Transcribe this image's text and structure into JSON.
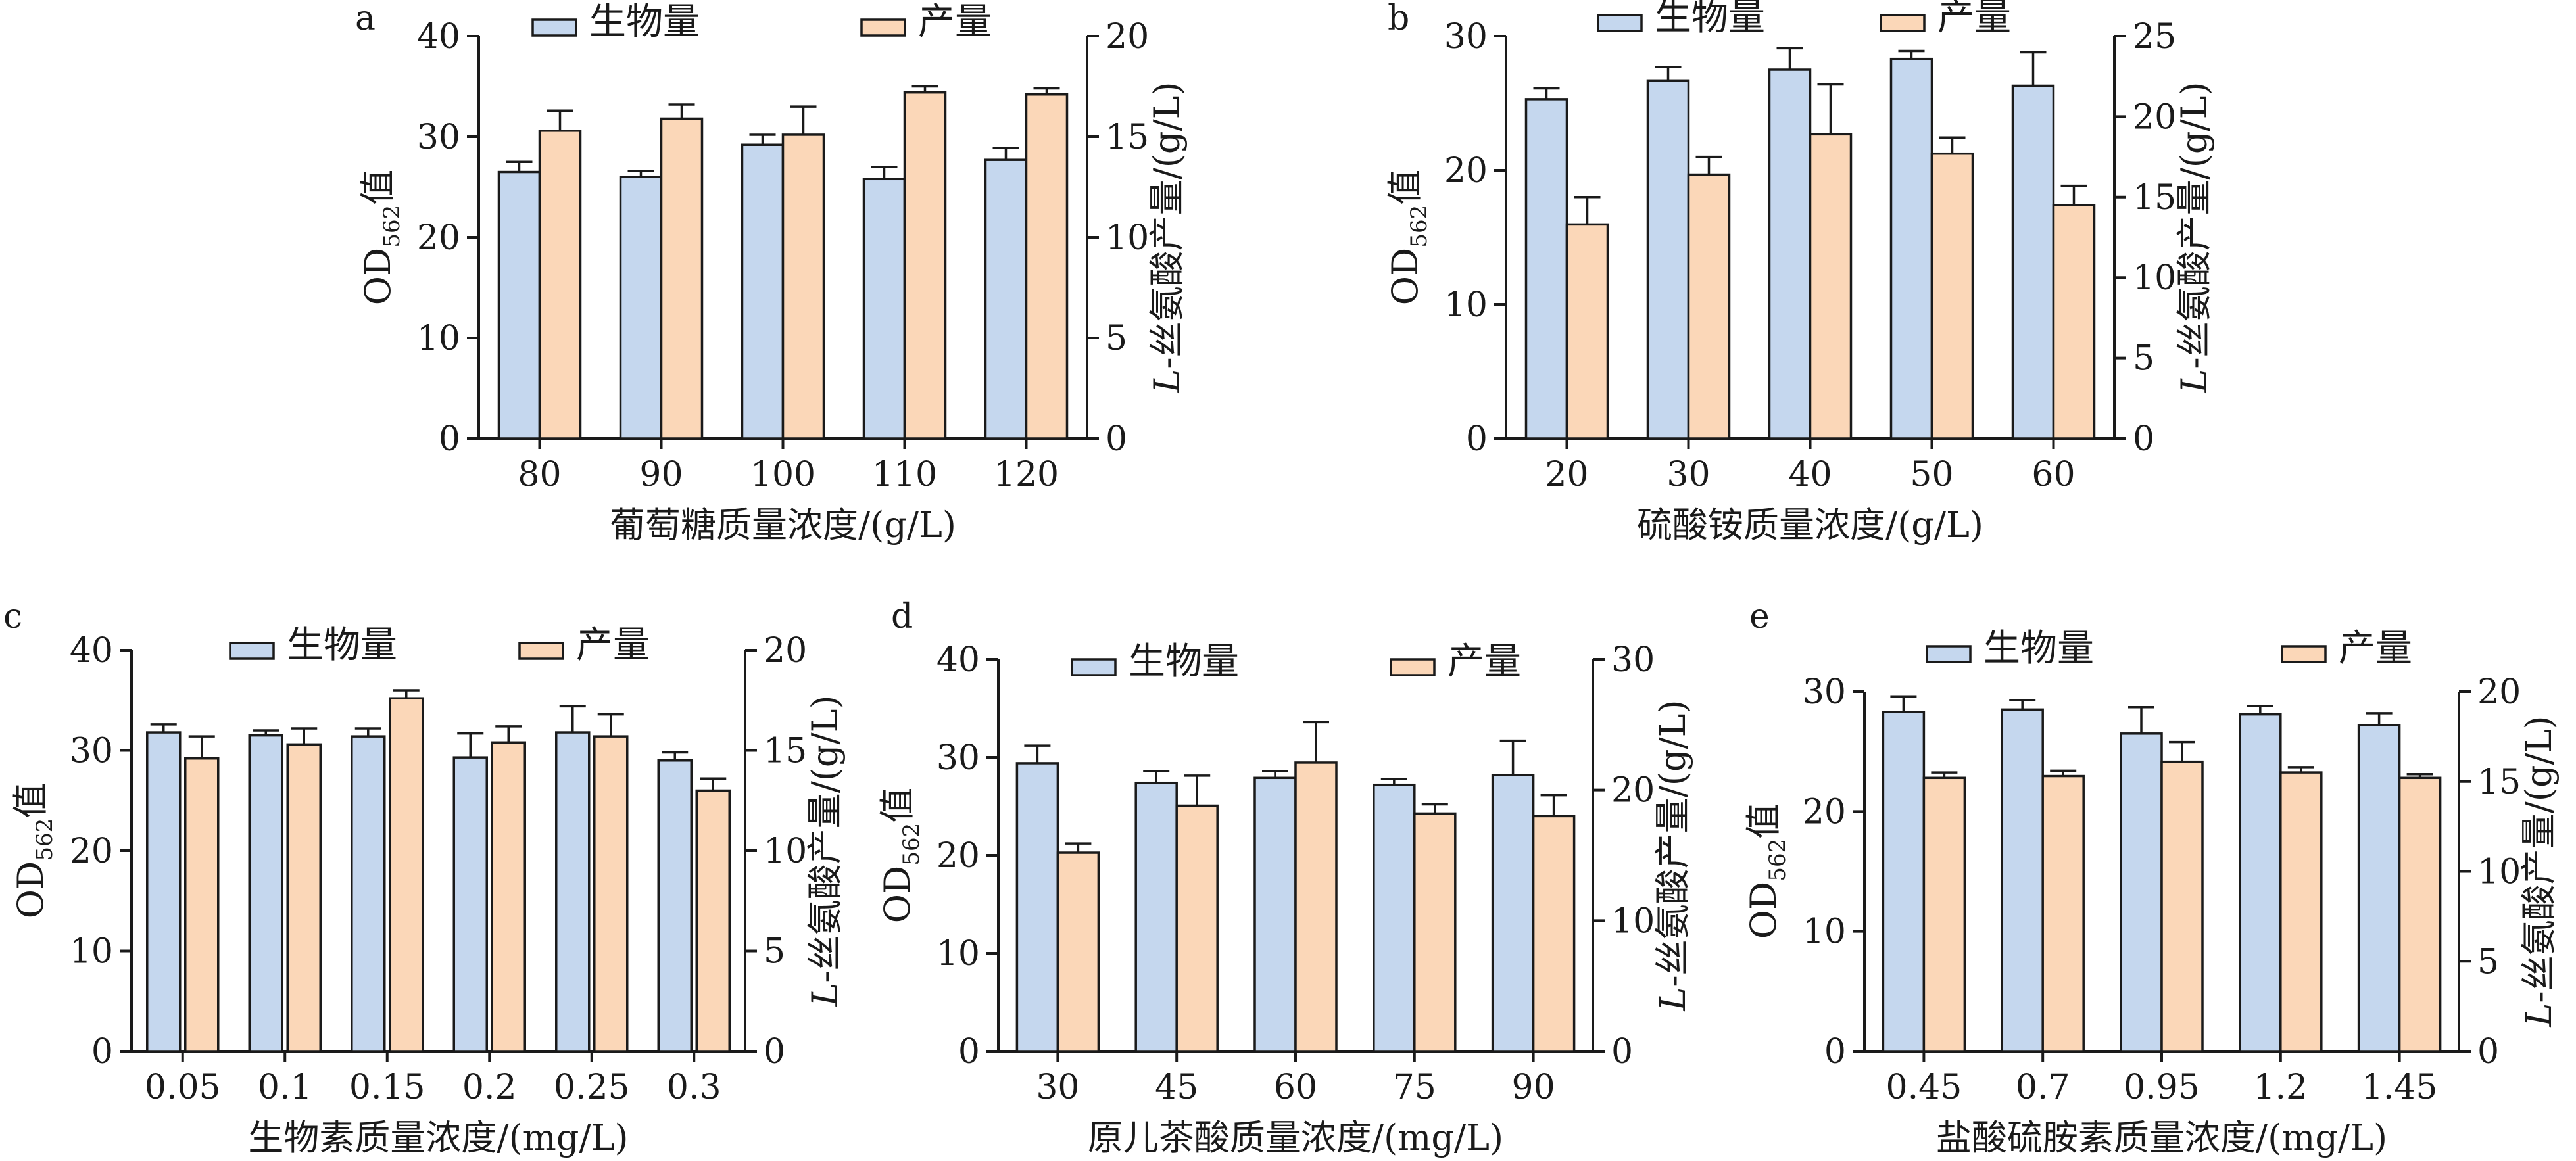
{
  "colors": {
    "biomass": "#c5d7ee",
    "yield": "#fbd7b8",
    "axis": "#1a1a1a"
  },
  "legend": {
    "biomass": "生物量",
    "yield": "产量"
  },
  "chart_data": [
    {
      "panel": "a",
      "type": "bar",
      "xlabel": "葡萄糖质量浓度/(g/L)",
      "ylabel_left": {
        "main": "OD",
        "sub": "562",
        "suffix": "值"
      },
      "ylabel_right": {
        "italic": "L",
        "rest": "-丝氨酸产量/(g/L)"
      },
      "categories": [
        "80",
        "90",
        "100",
        "110",
        "120"
      ],
      "left_ylim": [
        0,
        40
      ],
      "left_ticks": [
        "0",
        "10",
        "20",
        "30",
        "40"
      ],
      "right_ylim": [
        0,
        20
      ],
      "right_ticks": [
        "0",
        "5",
        "10",
        "15",
        "20"
      ],
      "series": [
        {
          "name": "生物量",
          "axis": "left",
          "values": [
            26.5,
            26.0,
            29.2,
            25.8,
            27.7
          ],
          "errors": [
            1.0,
            0.6,
            1.0,
            1.2,
            1.2
          ]
        },
        {
          "name": "产量",
          "axis": "right",
          "values": [
            15.3,
            15.9,
            15.1,
            17.2,
            17.1
          ],
          "errors": [
            1.0,
            0.7,
            1.4,
            0.3,
            0.3
          ]
        }
      ]
    },
    {
      "panel": "b",
      "type": "bar",
      "xlabel": "硫酸铵质量浓度/(g/L)",
      "ylabel_left": {
        "main": "OD",
        "sub": "562",
        "suffix": "值"
      },
      "ylabel_right": {
        "italic": "L",
        "rest": "-丝氨酸产量/(g/L)"
      },
      "categories": [
        "20",
        "30",
        "40",
        "50",
        "60"
      ],
      "left_ylim": [
        0,
        30
      ],
      "left_ticks": [
        "0",
        "10",
        "20",
        "30"
      ],
      "right_ylim": [
        0,
        25
      ],
      "right_ticks": [
        "0",
        "5",
        "10",
        "15",
        "20",
        "25"
      ],
      "series": [
        {
          "name": "生物量",
          "axis": "left",
          "values": [
            25.3,
            26.7,
            27.5,
            28.3,
            26.3
          ],
          "errors": [
            0.8,
            1.0,
            1.6,
            0.6,
            2.5
          ]
        },
        {
          "name": "产量",
          "axis": "right",
          "values": [
            13.3,
            16.4,
            18.9,
            17.7,
            14.5
          ],
          "errors": [
            1.7,
            1.1,
            3.1,
            1.0,
            1.2
          ]
        }
      ]
    },
    {
      "panel": "c",
      "type": "bar",
      "xlabel": "生物素质量浓度/(mg/L)",
      "ylabel_left": {
        "main": "OD",
        "sub": "562",
        "suffix": "值"
      },
      "ylabel_right": {
        "italic": "L",
        "rest": "-丝氨酸产量/(g/L)"
      },
      "categories": [
        "0.05",
        "0.1",
        "0.15",
        "0.2",
        "0.25",
        "0.3"
      ],
      "left_ylim": [
        0,
        40
      ],
      "left_ticks": [
        "0",
        "10",
        "20",
        "30",
        "40"
      ],
      "right_ylim": [
        0,
        20
      ],
      "right_ticks": [
        "0",
        "5",
        "10",
        "15",
        "20"
      ],
      "series": [
        {
          "name": "生物量",
          "axis": "left",
          "values": [
            31.8,
            31.5,
            31.4,
            29.3,
            31.8,
            29.0
          ],
          "errors": [
            0.8,
            0.5,
            0.8,
            2.4,
            2.6,
            0.8
          ]
        },
        {
          "name": "产量",
          "axis": "right",
          "values": [
            14.6,
            15.3,
            17.6,
            15.4,
            15.7,
            13.0
          ],
          "errors": [
            1.1,
            0.8,
            0.4,
            0.8,
            1.1,
            0.6
          ]
        }
      ]
    },
    {
      "panel": "d",
      "type": "bar",
      "xlabel": "原儿茶酸质量浓度/(mg/L)",
      "ylabel_left": {
        "main": "OD",
        "sub": "562",
        "suffix": "值"
      },
      "ylabel_right": {
        "italic": "L",
        "rest": "-丝氨酸产量/(g/L)"
      },
      "categories": [
        "30",
        "45",
        "60",
        "75",
        "90"
      ],
      "left_ylim": [
        0,
        40
      ],
      "left_ticks": [
        "0",
        "10",
        "20",
        "30",
        "40"
      ],
      "right_ylim": [
        0,
        30
      ],
      "right_ticks": [
        "0",
        "10",
        "20",
        "30"
      ],
      "series": [
        {
          "name": "生物量",
          "axis": "left",
          "values": [
            29.4,
            27.4,
            27.9,
            27.2,
            28.2
          ],
          "errors": [
            1.8,
            1.2,
            0.7,
            0.6,
            3.5
          ]
        },
        {
          "name": "产量",
          "axis": "right",
          "values": [
            15.2,
            18.8,
            22.1,
            18.2,
            18.0
          ],
          "errors": [
            0.7,
            2.3,
            3.1,
            0.7,
            1.6
          ]
        }
      ]
    },
    {
      "panel": "e",
      "type": "bar",
      "xlabel": "盐酸硫胺素质量浓度/(mg/L)",
      "ylabel_left": {
        "main": "OD",
        "sub": "562",
        "suffix": "值"
      },
      "ylabel_right": {
        "italic": "L",
        "rest": "-丝氨酸产量/(g/L)"
      },
      "categories": [
        "0.45",
        "0.7",
        "0.95",
        "1.2",
        "1.45"
      ],
      "left_ylim": [
        0,
        30
      ],
      "left_ticks": [
        "0",
        "10",
        "20",
        "30"
      ],
      "right_ylim": [
        0,
        20
      ],
      "right_ticks": [
        "0",
        "5",
        "10",
        "15",
        "20"
      ],
      "series": [
        {
          "name": "生物量",
          "axis": "left",
          "values": [
            28.3,
            28.5,
            26.5,
            28.1,
            27.2
          ],
          "errors": [
            1.3,
            0.8,
            2.2,
            0.7,
            1.0
          ]
        },
        {
          "name": "产量",
          "axis": "right",
          "values": [
            15.2,
            15.3,
            16.1,
            15.5,
            15.2
          ],
          "errors": [
            0.3,
            0.3,
            1.1,
            0.3,
            0.2
          ]
        }
      ]
    }
  ]
}
